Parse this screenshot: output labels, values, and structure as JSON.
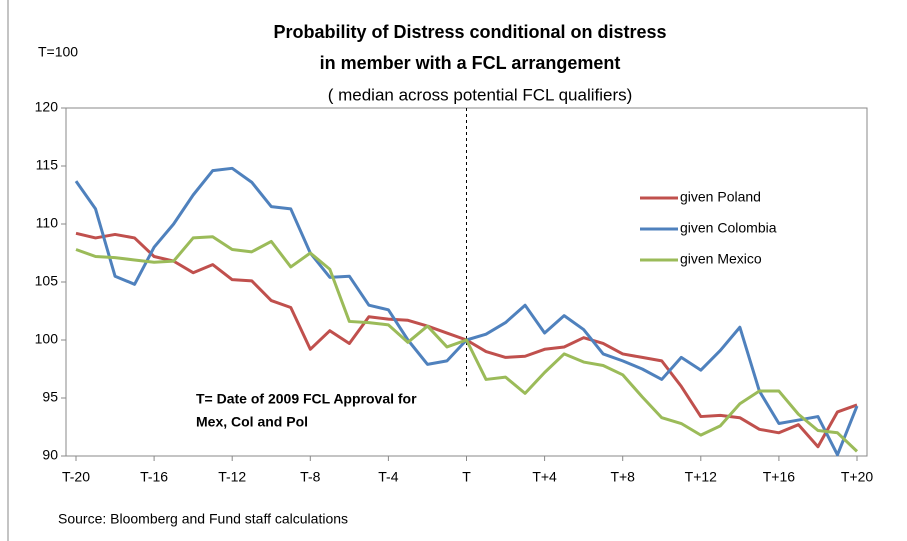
{
  "chart_data": {
    "type": "line",
    "title": [
      "Probability of Distress conditional on distress",
      "in member with a FCL arrangement"
    ],
    "subtitle": "( median across potential FCL qualifiers)",
    "y_label": "T=100",
    "annotation": [
      "T= Date of 2009 FCL Approval for",
      "Mex, Col and Pol"
    ],
    "source": "Source: Bloomberg and Fund staff calculations",
    "categories": [
      "T-20",
      null,
      null,
      null,
      "T-16",
      null,
      null,
      null,
      "T-12",
      null,
      null,
      null,
      "T-8",
      null,
      null,
      null,
      "T-4",
      null,
      null,
      null,
      "T",
      null,
      null,
      null,
      "T+4",
      null,
      null,
      null,
      "T+8",
      null,
      null,
      null,
      "T+12",
      null,
      null,
      null,
      "T+16",
      null,
      null,
      null,
      "T+20"
    ],
    "series": [
      {
        "name": "given Poland",
        "color": "#c0504d",
        "values": [
          109.2,
          108.8,
          109.1,
          108.8,
          107.2,
          106.8,
          105.8,
          106.5,
          105.2,
          105.1,
          103.4,
          102.8,
          99.2,
          100.8,
          99.7,
          102.0,
          101.8,
          101.7,
          101.2,
          100.6,
          100.0,
          99.0,
          98.5,
          98.6,
          99.2,
          99.4,
          100.2,
          99.7,
          98.8,
          98.5,
          98.2,
          96.0,
          93.4,
          93.5,
          93.3,
          92.3,
          92.0,
          92.7,
          90.8,
          93.8,
          94.4
        ]
      },
      {
        "name": "given Colombia",
        "color": "#4f81bd",
        "values": [
          113.7,
          111.3,
          105.5,
          104.8,
          108.0,
          110.0,
          112.5,
          114.6,
          114.8,
          113.6,
          111.5,
          111.3,
          107.5,
          105.4,
          105.5,
          103.0,
          102.6,
          100.0,
          97.9,
          98.2,
          100.0,
          100.5,
          101.5,
          103.0,
          100.6,
          102.1,
          100.9,
          98.8,
          98.2,
          97.5,
          96.6,
          98.5,
          97.4,
          99.1,
          101.1,
          95.6,
          92.8,
          93.1,
          93.4,
          90.1,
          94.3
        ]
      },
      {
        "name": "given Mexico",
        "color": "#9bbb59",
        "values": [
          107.8,
          107.2,
          107.1,
          106.9,
          106.7,
          106.8,
          108.8,
          108.9,
          107.8,
          107.6,
          108.5,
          106.3,
          107.5,
          106.1,
          101.6,
          101.5,
          101.3,
          99.8,
          101.2,
          99.4,
          100.0,
          96.6,
          96.8,
          95.4,
          97.2,
          98.8,
          98.1,
          97.8,
          97.0,
          95.1,
          93.3,
          92.8,
          91.8,
          92.6,
          94.5,
          95.6,
          95.6,
          93.6,
          92.2,
          92.0,
          90.4
        ]
      }
    ],
    "ylim": [
      90,
      120
    ],
    "yticks": [
      90,
      95,
      100,
      105,
      110,
      115,
      120
    ],
    "grid": false
  }
}
